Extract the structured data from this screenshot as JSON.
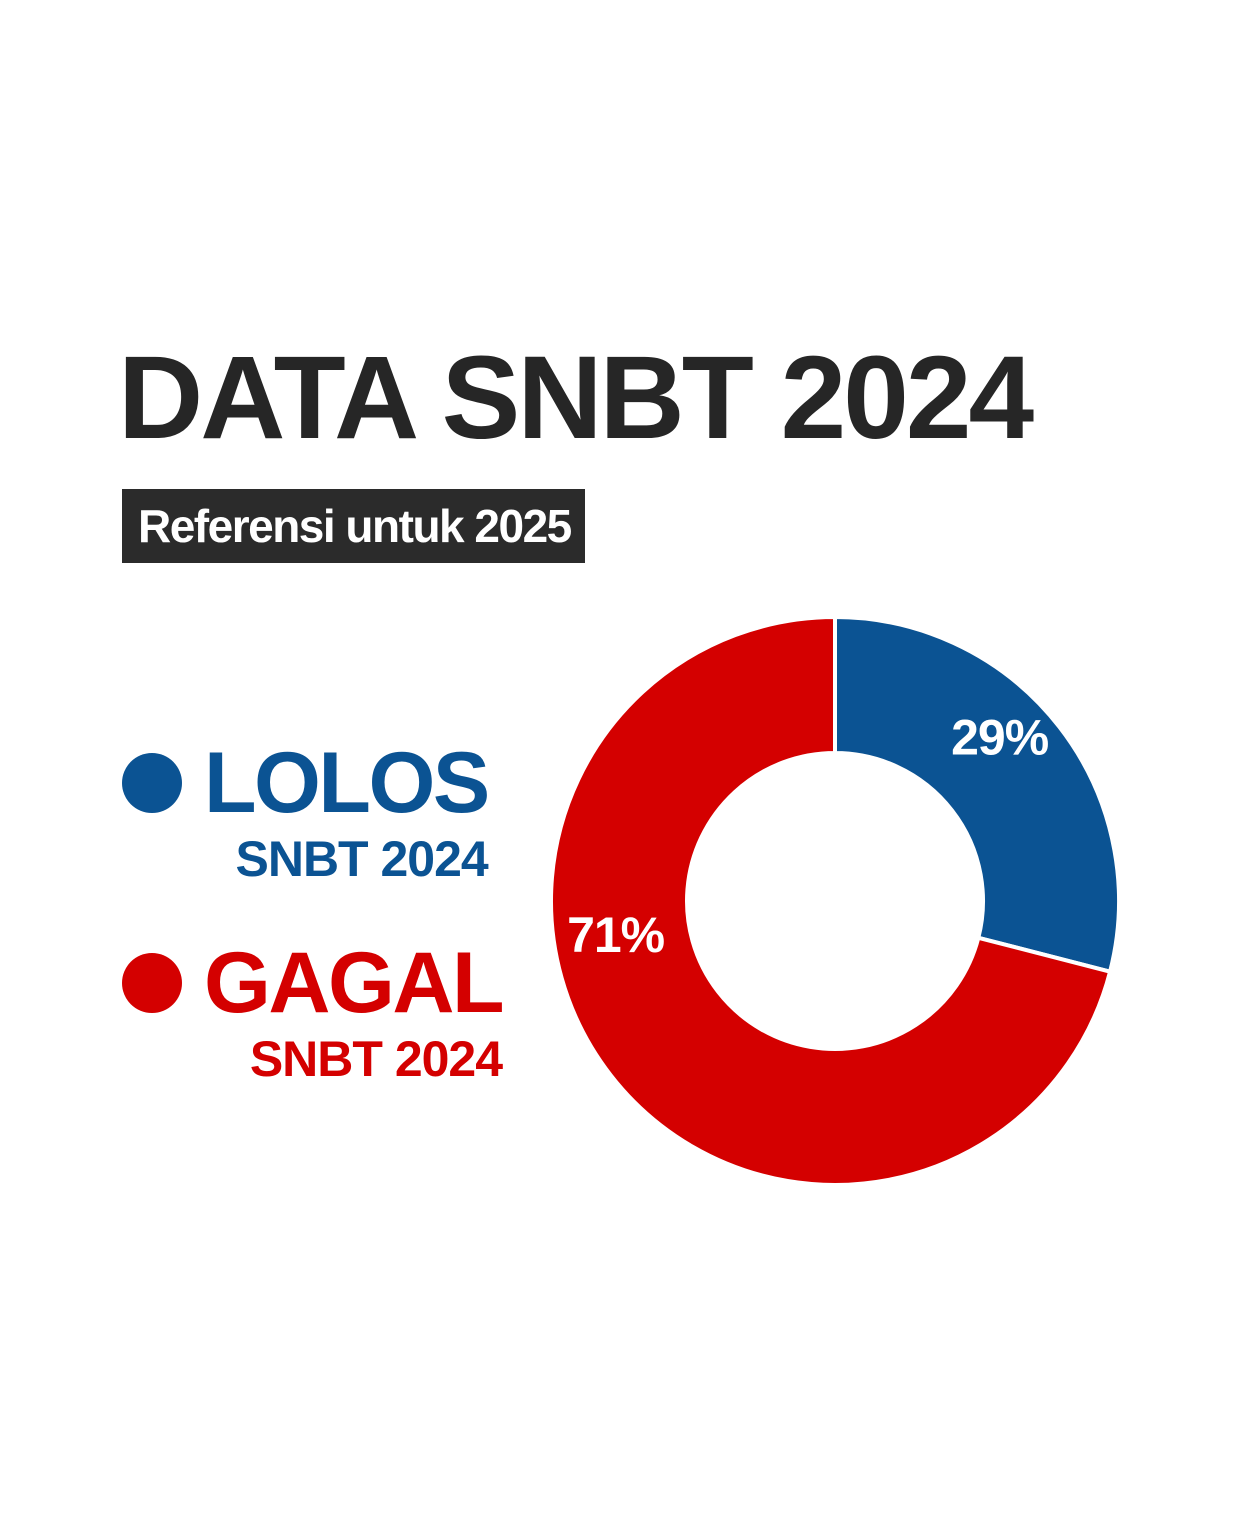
{
  "header": {
    "title": "DATA SNBT 2024",
    "subtitle": "Referensi untuk 2025"
  },
  "legend": [
    {
      "label": "LOLOS",
      "sublabel": "SNBT 2024",
      "color": "#0b5393"
    },
    {
      "label": "GAGAL",
      "sublabel": "SNBT 2024",
      "color": "#d40000"
    }
  ],
  "chart_data": {
    "type": "pie",
    "variant": "donut",
    "slices": [
      {
        "name": "LOLOS",
        "value": 29,
        "label": "29%",
        "color": "#0b5393"
      },
      {
        "name": "GAGAL",
        "value": 71,
        "label": "71%",
        "color": "#d40000"
      }
    ],
    "legend_position": "left"
  }
}
